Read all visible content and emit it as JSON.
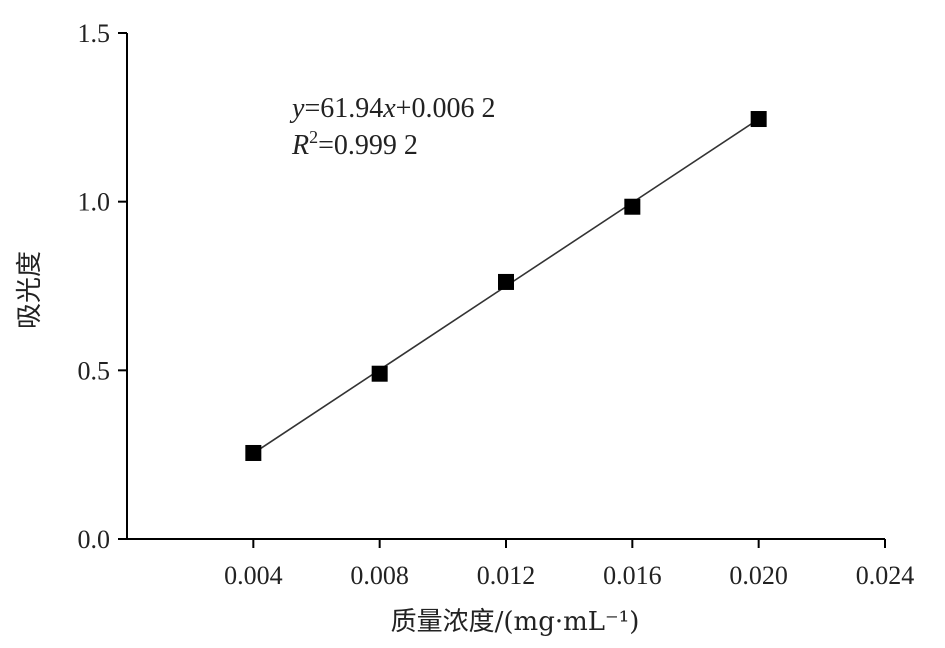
{
  "chart_data": {
    "type": "scatter",
    "xlabel": "质量浓度/(mg·mL⁻¹)",
    "ylabel": "吸光度",
    "xlim": [
      0,
      0.024
    ],
    "ylim": [
      0,
      1.5
    ],
    "x_ticks": [
      0.004,
      0.008,
      0.012,
      0.016,
      0.02,
      0.024
    ],
    "x_tick_labels": [
      "0.004",
      "0.008",
      "0.012",
      "0.016",
      "0.020",
      "0.024"
    ],
    "y_ticks": [
      0.0,
      0.5,
      1.0,
      1.5
    ],
    "y_tick_labels": [
      "0.0",
      "0.5",
      "1.0",
      "1.5"
    ],
    "series": [
      {
        "x": [
          0.004,
          0.008,
          0.012,
          0.016,
          0.02
        ],
        "y": [
          0.255,
          0.49,
          0.762,
          0.985,
          1.245
        ]
      }
    ],
    "fit_line": {
      "slope": 61.94,
      "intercept": 0.0062,
      "x_range": [
        0.004,
        0.02
      ]
    },
    "annotation": {
      "equation": {
        "y": "y",
        "eq": "=61.94",
        "x": "x",
        "rest": "+0.006 2"
      },
      "r2": {
        "r": "R",
        "sup": "2",
        "rest": "=0.999 2"
      }
    },
    "grid": false,
    "legend": "none",
    "marker": "square",
    "marker_color": "#000000",
    "line_color": "#333333"
  }
}
